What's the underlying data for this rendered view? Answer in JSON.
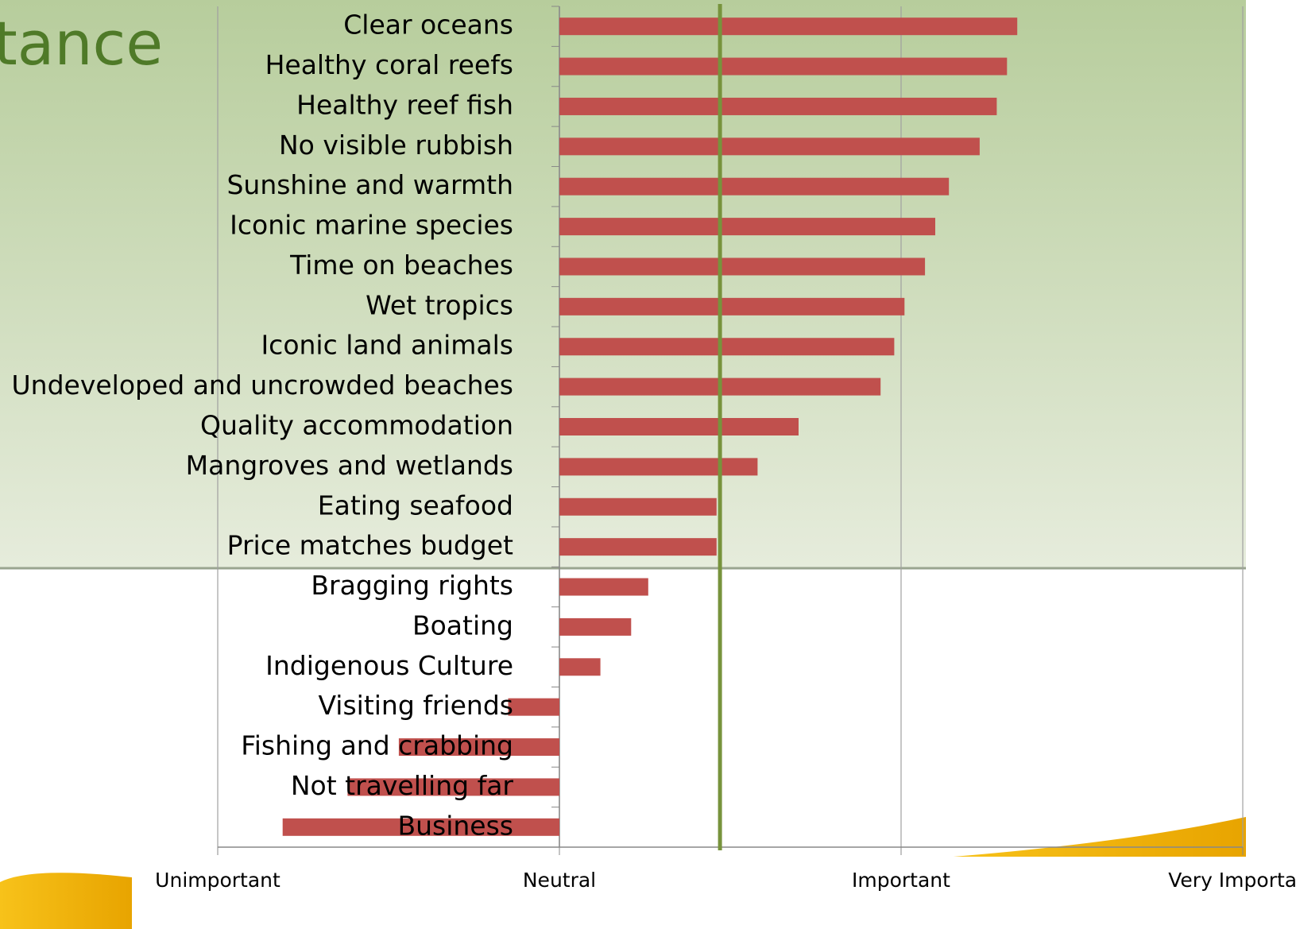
{
  "chart_data": {
    "type": "bar",
    "orientation": "horizontal",
    "title": "tance",
    "categories": [
      "Clear oceans",
      "Healthy coral reefs",
      "Healthy reef fish",
      "No visible rubbish",
      "Sunshine and warmth",
      "Iconic marine species",
      "Time on beaches",
      "Wet tropics",
      "Iconic land animals",
      "Undeveloped and uncrowded beaches",
      "Quality accommodation",
      "Mangroves and wetlands",
      "Eating seafood",
      "Price matches budget",
      "Bragging rights",
      "Boating",
      "Indigenous Culture",
      "Visiting friends",
      "Fishing and crabbing",
      "Not travelling far",
      "Business"
    ],
    "values": [
      3.34,
      3.31,
      3.28,
      3.23,
      3.14,
      3.1,
      3.07,
      3.01,
      2.98,
      2.94,
      2.7,
      2.58,
      2.46,
      2.46,
      2.26,
      2.21,
      2.12,
      1.85,
      1.53,
      1.38,
      1.19
    ],
    "color": "#c0504d",
    "bar_base": 2,
    "reference_line": {
      "value": 2.47,
      "color": "#77933c"
    },
    "xlim": [
      1,
      4
    ],
    "xticks": [
      {
        "value": 1,
        "label": "Unimportant"
      },
      {
        "value": 2,
        "label": "Neutral"
      },
      {
        "value": 3,
        "label": "Important"
      },
      {
        "value": 4,
        "label": "Very Important"
      }
    ],
    "grid": true
  }
}
